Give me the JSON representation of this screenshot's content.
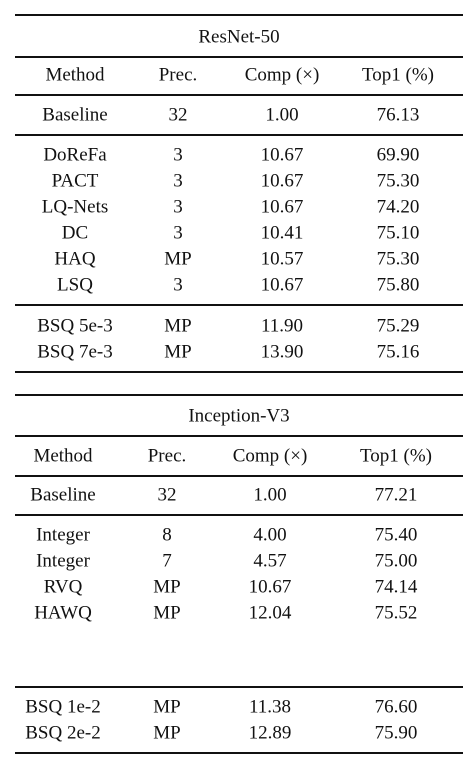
{
  "tables": [
    {
      "title": "ResNet-50",
      "header": [
        "Method",
        "Prec.",
        "Comp (×)",
        "Top1 (%)"
      ],
      "groups": [
        [
          [
            "Baseline",
            "32",
            "1.00",
            "76.13"
          ]
        ],
        [
          [
            "DoReFa",
            "3",
            "10.67",
            "69.90"
          ],
          [
            "PACT",
            "3",
            "10.67",
            "75.30"
          ],
          [
            "LQ-Nets",
            "3",
            "10.67",
            "74.20"
          ],
          [
            "DC",
            "3",
            "10.41",
            "75.10"
          ],
          [
            "HAQ",
            "MP",
            "10.57",
            "75.30"
          ],
          [
            "LSQ",
            "3",
            "10.67",
            "75.80"
          ]
        ],
        [
          [
            "BSQ 5e-3",
            "MP",
            "11.90",
            "75.29"
          ],
          [
            "BSQ 7e-3",
            "MP",
            "13.90",
            "75.16"
          ]
        ]
      ]
    },
    {
      "title": "Inception-V3",
      "header": [
        "Method",
        "Prec.",
        "Comp (×)",
        "Top1 (%)"
      ],
      "groups": [
        [
          [
            "Baseline",
            "32",
            "1.00",
            "77.21"
          ]
        ],
        [
          [
            "Integer",
            "8",
            "4.00",
            "75.40"
          ],
          [
            "Integer",
            "7",
            "4.57",
            "75.00"
          ],
          [
            "RVQ",
            "MP",
            "10.67",
            "74.14"
          ],
          [
            "HAWQ",
            "MP",
            "12.04",
            "75.52"
          ]
        ],
        [
          [
            "BSQ 1e-2",
            "MP",
            "11.38",
            "76.60"
          ],
          [
            "BSQ 2e-2",
            "MP",
            "12.89",
            "75.90"
          ]
        ]
      ]
    }
  ]
}
